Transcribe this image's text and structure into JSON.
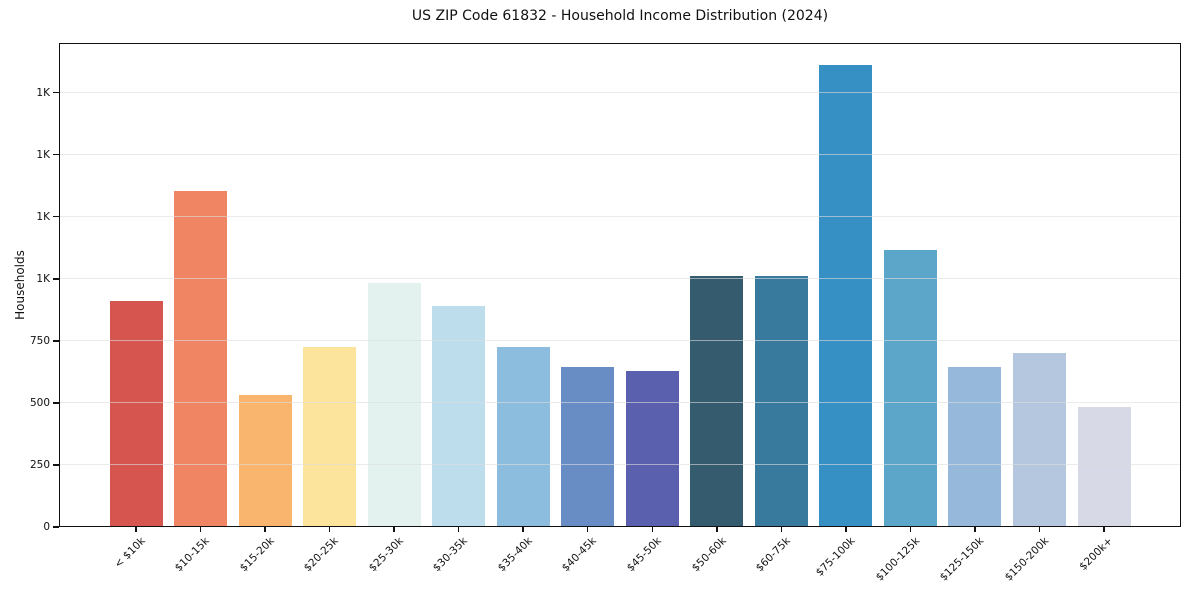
{
  "chart_data": {
    "type": "bar",
    "title": "US ZIP Code 61832 - Household Income Distribution (2024)",
    "xlabel": "",
    "ylabel": "Households",
    "categories": [
      "< $10k",
      "$10-15k",
      "$15-20k",
      "$20-25k",
      "$25-30k",
      "$30-35k",
      "$35-40k",
      "$40-45k",
      "$45-50k",
      "$50-60k",
      "$60-75k",
      "$75-100k",
      "$100-125k",
      "$125-150k",
      "$150-200k",
      "$200k+"
    ],
    "values": [
      910,
      1355,
      530,
      725,
      985,
      890,
      725,
      645,
      630,
      1010,
      1010,
      1860,
      1115,
      645,
      700,
      485
    ],
    "bar_colors": [
      "#d6554f",
      "#f08563",
      "#f9b46d",
      "#fce49d",
      "#e3f1ef",
      "#bddcec",
      "#8cbcde",
      "#688dc4",
      "#5a5fae",
      "#355b6e",
      "#387a9d",
      "#3790c4",
      "#5ca6c9",
      "#96b8da",
      "#b5c7df",
      "#d7d9e7"
    ],
    "ylim": [
      0,
      1950
    ],
    "y_ticks": [
      {
        "value": 0,
        "label": "0"
      },
      {
        "value": 250,
        "label": "250"
      },
      {
        "value": 500,
        "label": "500"
      },
      {
        "value": 750,
        "label": "750"
      },
      {
        "value": 1000,
        "label": "1K"
      },
      {
        "value": 1250,
        "label": "1K"
      },
      {
        "value": 1500,
        "label": "1K"
      },
      {
        "value": 1750,
        "label": "1K"
      }
    ],
    "grid": "horizontal",
    "grid_above_bars": true,
    "legend_position": "none",
    "colors": {
      "grid": "rgba(222,222,222,0.6)",
      "spine": "#111111",
      "text": "#111111",
      "background": "#ffffff"
    }
  }
}
